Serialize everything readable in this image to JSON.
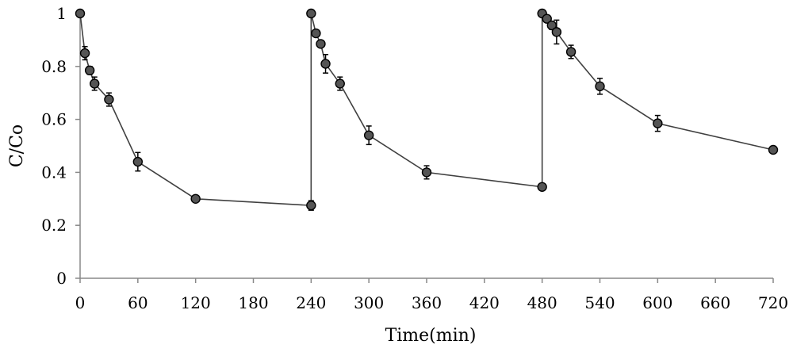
{
  "chart_data": {
    "type": "scatter",
    "xlabel": "Time(min)",
    "ylabel": "C/Co",
    "xlim": [
      0,
      720
    ],
    "ylim": [
      0,
      1
    ],
    "x_ticks": [
      0,
      60,
      120,
      180,
      240,
      300,
      360,
      420,
      480,
      540,
      600,
      660,
      720
    ],
    "y_ticks": [
      {
        "value": 0,
        "label": "0"
      },
      {
        "value": 0.2,
        "label": "0.2"
      },
      {
        "value": 0.4,
        "label": "0.4"
      },
      {
        "value": 0.6,
        "label": "0.6"
      },
      {
        "value": 0.8,
        "label": "0.8"
      },
      {
        "value": 1,
        "label": "1"
      }
    ],
    "grid": false,
    "legend": "none",
    "marker_color": "#555555",
    "line_color": "#404040",
    "series": [
      {
        "points": [
          {
            "x": 0,
            "y": 1.0,
            "err": 0
          },
          {
            "x": 5,
            "y": 0.85,
            "err": 0.025
          },
          {
            "x": 10,
            "y": 0.785,
            "err": 0.015
          },
          {
            "x": 15,
            "y": 0.735,
            "err": 0.025
          },
          {
            "x": 30,
            "y": 0.675,
            "err": 0.025
          },
          {
            "x": 60,
            "y": 0.44,
            "err": 0.035
          },
          {
            "x": 120,
            "y": 0.3,
            "err": 0
          },
          {
            "x": 240,
            "y": 0.275,
            "err": 0.018
          },
          {
            "x": 240,
            "y": 1.0,
            "err": 0
          },
          {
            "x": 245,
            "y": 0.925,
            "err": 0.01
          },
          {
            "x": 250,
            "y": 0.885,
            "err": 0.01
          },
          {
            "x": 255,
            "y": 0.81,
            "err": 0.035
          },
          {
            "x": 270,
            "y": 0.735,
            "err": 0.025
          },
          {
            "x": 300,
            "y": 0.54,
            "err": 0.035
          },
          {
            "x": 360,
            "y": 0.4,
            "err": 0.025
          },
          {
            "x": 480,
            "y": 0.345,
            "err": 0
          },
          {
            "x": 480,
            "y": 1.0,
            "err": 0
          },
          {
            "x": 485,
            "y": 0.98,
            "err": 0
          },
          {
            "x": 490,
            "y": 0.955,
            "err": 0.015
          },
          {
            "x": 495,
            "y": 0.93,
            "err": 0.045
          },
          {
            "x": 510,
            "y": 0.855,
            "err": 0.025
          },
          {
            "x": 540,
            "y": 0.725,
            "err": 0.03
          },
          {
            "x": 600,
            "y": 0.585,
            "err": 0.03
          },
          {
            "x": 720,
            "y": 0.485,
            "err": 0.012
          }
        ]
      }
    ]
  }
}
